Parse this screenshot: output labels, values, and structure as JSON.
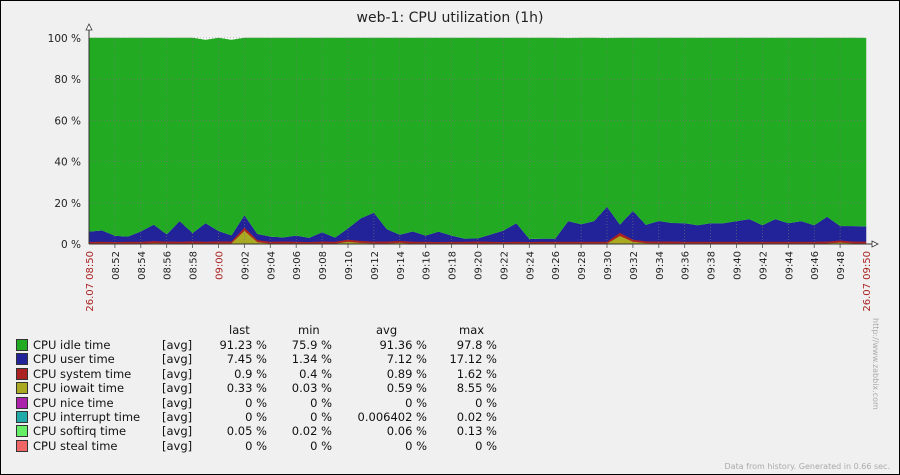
{
  "window": {
    "footer_text": "Data from history. Generated in 0.66 sec.",
    "side_text": "http://www.zabbix.com"
  },
  "chart_data": {
    "type": "area",
    "title": "web-1: CPU utilization (1h)",
    "ylim": [
      0,
      100
    ],
    "y_ticks": [
      "0 %",
      "20 %",
      "40 %",
      "60 %",
      "80 %",
      "100 %"
    ],
    "x_ticks": [
      "08:52",
      "08:54",
      "08:56",
      "08:58",
      "09:00",
      "09:02",
      "09:04",
      "09:06",
      "09:08",
      "09:10",
      "09:12",
      "09:14",
      "09:16",
      "09:18",
      "09:20",
      "09:22",
      "09:24",
      "09:26",
      "09:28",
      "09:30",
      "09:32",
      "09:34",
      "09:36",
      "09:38",
      "09:40",
      "09:42",
      "09:44",
      "09:46",
      "09:48"
    ],
    "x_start_label": "26.07 08:50",
    "x_end_label": "26.07 09:50",
    "x_highlight": [
      "09:00"
    ],
    "grid": true,
    "x_minutes": [
      0,
      1,
      2,
      3,
      4,
      5,
      6,
      7,
      8,
      9,
      10,
      11,
      12,
      13,
      14,
      15,
      16,
      17,
      18,
      19,
      20,
      21,
      22,
      23,
      24,
      25,
      26,
      27,
      28,
      29,
      30,
      31,
      32,
      33,
      34,
      35,
      36,
      37,
      38,
      39,
      40,
      41,
      42,
      43,
      44,
      45,
      46,
      47,
      48,
      49,
      50,
      51,
      52,
      53,
      54,
      55,
      56,
      57,
      58,
      59,
      60
    ],
    "series": [
      {
        "name": "CPU iowait time",
        "color": "#aaaa22",
        "values": [
          0.3,
          0.3,
          0.3,
          0.3,
          0.3,
          0.5,
          0.4,
          0.3,
          0.4,
          0.3,
          0.4,
          0.4,
          6.5,
          1,
          0.3,
          0.4,
          0.3,
          0.3,
          0.4,
          0.3,
          1.2,
          0.6,
          0.4,
          0.4,
          0.6,
          0.3,
          0.3,
          0.3,
          0.3,
          0.3,
          0.4,
          0.3,
          0.3,
          0.3,
          0.3,
          0.3,
          0.3,
          0.3,
          0.3,
          0.3,
          0.3,
          4,
          1.2,
          0.5,
          0.4,
          0.4,
          0.3,
          0.3,
          0.3,
          0.3,
          0.3,
          0.3,
          0.3,
          0.3,
          0.3,
          0.3,
          0.3,
          0.4,
          0.8,
          0.4,
          0.33
        ]
      },
      {
        "name": "CPU system time",
        "color": "#aa2222",
        "values": [
          0.8,
          0.9,
          0.8,
          0.9,
          0.9,
          1,
          0.9,
          0.9,
          1,
          0.9,
          1,
          0.9,
          1.6,
          1,
          0.9,
          0.9,
          0.9,
          0.8,
          0.9,
          0.9,
          1,
          1,
          0.9,
          0.9,
          1,
          0.9,
          0.9,
          0.8,
          0.9,
          0.9,
          0.9,
          0.9,
          0.8,
          0.9,
          0.8,
          0.9,
          0.9,
          0.9,
          0.9,
          0.9,
          0.9,
          1.5,
          1,
          0.9,
          0.9,
          0.9,
          0.9,
          0.9,
          0.9,
          0.9,
          0.9,
          0.9,
          0.9,
          0.9,
          0.9,
          0.9,
          0.9,
          0.9,
          1,
          0.9,
          0.9
        ]
      },
      {
        "name": "CPU user time",
        "color": "#222299",
        "values": [
          5,
          5.5,
          3,
          2.5,
          5,
          8,
          3.5,
          10,
          4,
          9,
          5,
          3,
          6,
          3,
          2.5,
          2,
          3,
          2,
          4.5,
          2,
          5.5,
          11,
          14,
          6,
          3,
          5,
          3,
          5,
          3,
          1.5,
          1.5,
          3.5,
          5.5,
          9,
          1.5,
          1.5,
          1.5,
          10,
          8.5,
          10,
          17,
          4,
          14,
          8,
          10,
          9,
          9,
          8,
          9,
          9,
          10,
          11,
          8,
          11,
          9,
          10,
          8,
          12,
          7,
          7.5,
          7.45
        ]
      },
      {
        "name": "CPU softirq time",
        "color": "#66ee66",
        "values": [
          0.05,
          0.05,
          0.05,
          0.05,
          0.05,
          0.05,
          0.05,
          0.05,
          0.05,
          0.05,
          0.05,
          0.05,
          0.1,
          0.05,
          0.05,
          0.05,
          0.05,
          0.05,
          0.05,
          0.05,
          0.05,
          0.05,
          0.05,
          0.05,
          0.05,
          0.05,
          0.05,
          0.05,
          0.05,
          0.05,
          0.05,
          0.05,
          0.05,
          0.05,
          0.05,
          0.05,
          0.05,
          0.05,
          0.05,
          0.05,
          0.05,
          0.1,
          0.05,
          0.05,
          0.05,
          0.05,
          0.05,
          0.05,
          0.05,
          0.05,
          0.05,
          0.05,
          0.05,
          0.05,
          0.05,
          0.05,
          0.05,
          0.05,
          0.05,
          0.05,
          0.05
        ]
      },
      {
        "name": "CPU idle time",
        "color": "#22aa22",
        "values": [
          93.85,
          93.25,
          95.85,
          96.25,
          93.75,
          90.45,
          95.15,
          88.75,
          94.55,
          88.75,
          93.55,
          94.65,
          85.8,
          94.95,
          96.25,
          96.65,
          95.75,
          96.85,
          94.15,
          96.75,
          92.25,
          87.35,
          84.65,
          92.65,
          95.35,
          93.75,
          95.75,
          93.85,
          95.75,
          97.25,
          97.15,
          95.25,
          93.35,
          89.75,
          97.35,
          97.25,
          97.25,
          88.65,
          90.25,
          88.75,
          81.65,
          90.4,
          83.75,
          90.55,
          88.65,
          89.65,
          89.75,
          90.75,
          89.75,
          89.75,
          88.75,
          87.75,
          90.75,
          87.75,
          89.75,
          88.75,
          90.75,
          86.65,
          91.15,
          91.15,
          91.23
        ]
      }
    ]
  },
  "legend": {
    "headers": {
      "last": "last",
      "min": "min",
      "avg": "avg",
      "max": "max"
    },
    "items": [
      {
        "name": "CPU idle time",
        "fn": "[avg]",
        "color": "#22aa22",
        "last": "91.23 %",
        "min": "75.9 %",
        "avg": "91.36 %",
        "max": "97.8 %"
      },
      {
        "name": "CPU user time",
        "fn": "[avg]",
        "color": "#222299",
        "last": "7.45 %",
        "min": "1.34 %",
        "avg": "7.12 %",
        "max": "17.12 %"
      },
      {
        "name": "CPU system time",
        "fn": "[avg]",
        "color": "#aa2222",
        "last": "0.9 %",
        "min": "0.4 %",
        "avg": "0.89 %",
        "max": "1.62 %"
      },
      {
        "name": "CPU iowait time",
        "fn": "[avg]",
        "color": "#aaaa22",
        "last": "0.33 %",
        "min": "0.03 %",
        "avg": "0.59 %",
        "max": "8.55 %"
      },
      {
        "name": "CPU nice time",
        "fn": "[avg]",
        "color": "#aa22aa",
        "last": "0 %",
        "min": "0 %",
        "avg": "0 %",
        "max": "0 %"
      },
      {
        "name": "CPU interrupt time",
        "fn": "[avg]",
        "color": "#22aaaa",
        "last": "0 %",
        "min": "0 %",
        "avg": "0.006402 %",
        "max": "0.02 %"
      },
      {
        "name": "CPU softirq time",
        "fn": "[avg]",
        "color": "#66ee66",
        "last": "0.05 %",
        "min": "0.02 %",
        "avg": "0.06 %",
        "max": "0.13 %"
      },
      {
        "name": "CPU steal time",
        "fn": "[avg]",
        "color": "#ee6666",
        "last": "0 %",
        "min": "0 %",
        "avg": "0 %",
        "max": "0 %"
      }
    ]
  }
}
